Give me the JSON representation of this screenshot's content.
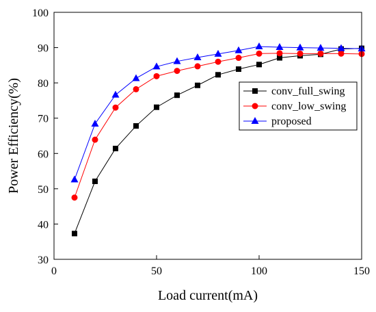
{
  "chart_data": {
    "type": "line",
    "title": "",
    "xlabel": "Load current(mA)",
    "ylabel": "Power Efficiency(%)",
    "xlim": [
      0,
      150
    ],
    "ylim": [
      30,
      100
    ],
    "xticks": [
      0,
      50,
      100,
      150
    ],
    "yticks": [
      30,
      40,
      50,
      60,
      70,
      80,
      90,
      100
    ],
    "grid": false,
    "legend_position": "right",
    "x": [
      10,
      20,
      30,
      40,
      50,
      60,
      70,
      80,
      90,
      100,
      110,
      120,
      130,
      140,
      150
    ],
    "series": [
      {
        "name": "conv_full_swing",
        "color": "#000000",
        "marker": "square",
        "values": [
          37.3,
          52.1,
          61.4,
          67.8,
          73.1,
          76.5,
          79.3,
          82.3,
          83.9,
          85.2,
          87.1,
          87.7,
          88.1,
          89.6,
          89.8
        ]
      },
      {
        "name": "conv_low_swing",
        "color": "#ff0000",
        "marker": "circle",
        "values": [
          47.5,
          63.9,
          73.0,
          78.2,
          81.9,
          83.4,
          84.7,
          86.0,
          87.1,
          88.3,
          88.4,
          88.3,
          88.3,
          88.3,
          88.2
        ]
      },
      {
        "name": "proposed",
        "color": "#0000ff",
        "marker": "triangle",
        "values": [
          52.6,
          68.4,
          76.6,
          81.3,
          84.6,
          86.1,
          87.2,
          88.2,
          89.2,
          90.3,
          90.1,
          90.0,
          89.9,
          89.8,
          89.7
        ]
      }
    ]
  }
}
